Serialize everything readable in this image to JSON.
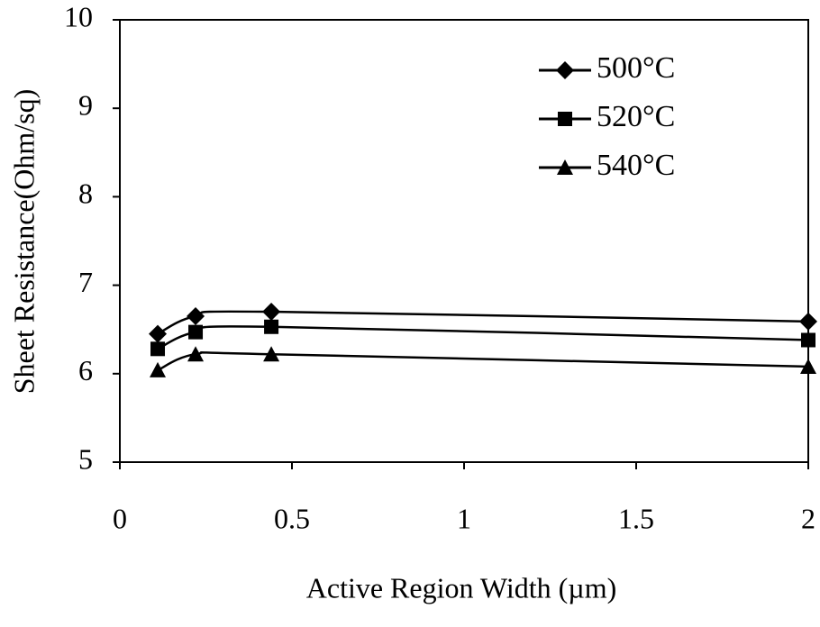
{
  "chart_data": {
    "type": "line",
    "x_label": "Active Region Width (µm)",
    "y_label": "Sheet Resistance(Ohm/sq)",
    "x": [
      0.11,
      0.22,
      0.44,
      2
    ],
    "series": [
      {
        "name": "500°C",
        "color": "#000000",
        "marker": "diamond",
        "values": [
          6.45,
          6.65,
          6.7,
          6.59
        ]
      },
      {
        "name": "520°C",
        "color": "#000000",
        "marker": "square",
        "values": [
          6.28,
          6.47,
          6.53,
          6.38
        ]
      },
      {
        "name": "540°C",
        "color": "#000000",
        "marker": "triangle",
        "values": [
          6.04,
          6.22,
          6.22,
          6.08
        ]
      }
    ],
    "xlim": [
      0,
      2
    ],
    "ylim": [
      5,
      10
    ],
    "xticks": [
      0,
      0.5,
      1,
      1.5,
      2
    ],
    "yticks": [
      5,
      6,
      7,
      8,
      9,
      10
    ],
    "legend": "upper right"
  }
}
